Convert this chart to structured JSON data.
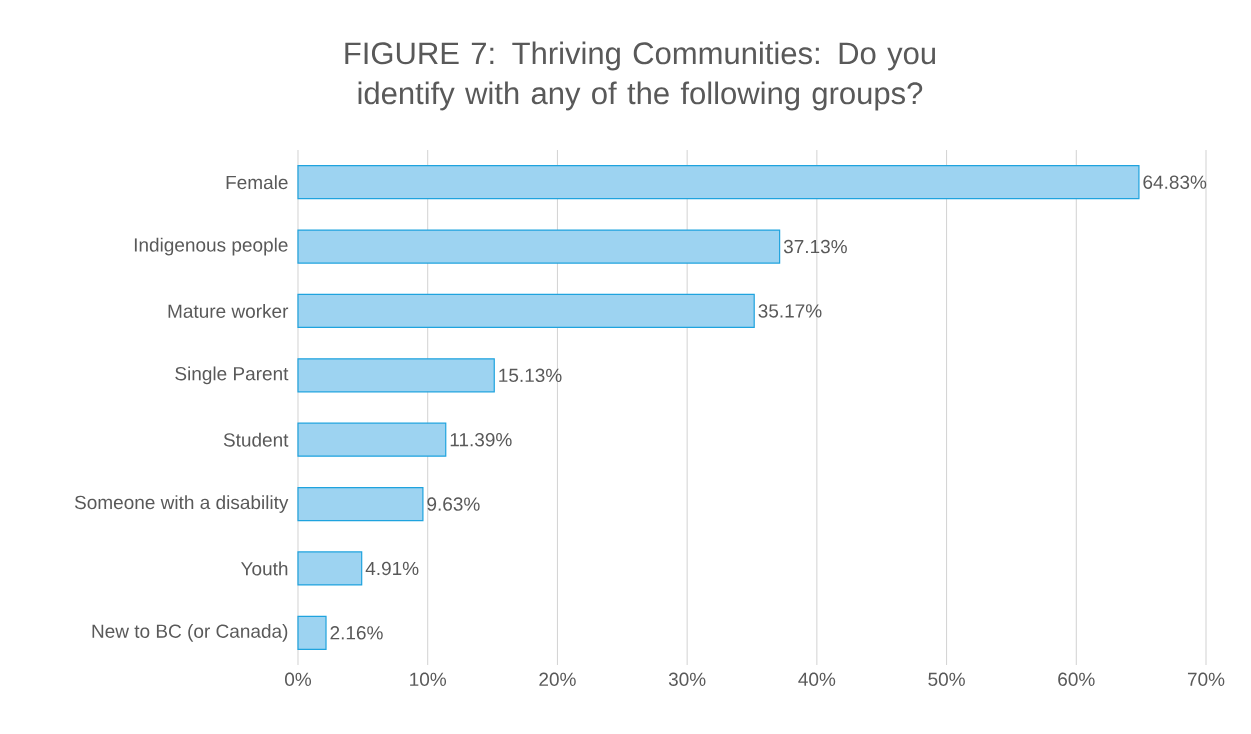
{
  "chart_data": {
    "type": "bar",
    "orientation": "horizontal",
    "title": "FIGURE 7: Thriving Communities: Do you identify with any of the following groups?",
    "categories": [
      "Female",
      "Indigenous people",
      "Mature worker",
      "Single Parent",
      "Student",
      "Someone with a disability",
      "Youth",
      "New to BC (or Canada)"
    ],
    "values": [
      64.83,
      37.13,
      35.17,
      15.13,
      11.39,
      9.63,
      4.91,
      2.16
    ],
    "value_labels": [
      "64.83%",
      "37.13%",
      "35.17%",
      "15.13%",
      "11.39%",
      "9.63%",
      "4.91%",
      "2.16%"
    ],
    "color": "#9dd3f1",
    "xlim": [
      0,
      70
    ],
    "xticks": [
      {
        "value": 0,
        "label": "0%"
      },
      {
        "value": 10,
        "label": "10%"
      },
      {
        "value": 20,
        "label": "20%"
      },
      {
        "value": 30,
        "label": "30%"
      },
      {
        "value": 40,
        "label": "40%"
      },
      {
        "value": 50,
        "label": "50%"
      },
      {
        "value": 60,
        "label": "60%"
      },
      {
        "value": 70,
        "label": "70%"
      }
    ],
    "grid": "x"
  }
}
